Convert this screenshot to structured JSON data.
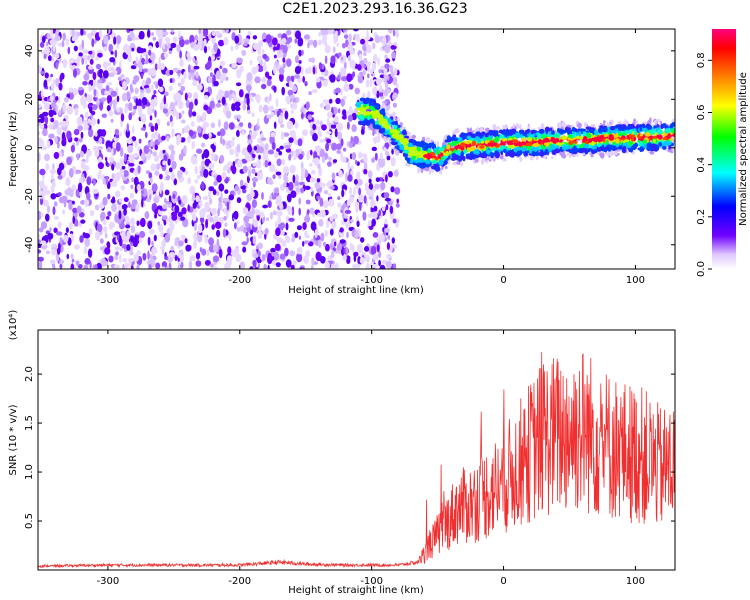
{
  "title": "C2E1.2023.293.16.36.G23",
  "chart_data": [
    {
      "type": "heatmap",
      "xlabel": "Height of straight line (km)",
      "ylabel": "Frequency (Hz)",
      "xlim": [
        -353,
        130
      ],
      "ylim": [
        -50,
        49
      ],
      "xticks": [
        -300,
        -200,
        -100,
        0,
        100
      ],
      "yticks": [
        -40,
        -20,
        0,
        20,
        40
      ],
      "colorbar": {
        "label": "Normalized spectral amplitude",
        "range": [
          0,
          0.92
        ],
        "ticks": [
          0.0,
          0.2,
          0.4,
          0.6,
          0.8
        ],
        "colormap": [
          "#ffffff",
          "#7000ff",
          "#0000ff",
          "#00ffff",
          "#00ff00",
          "#ffff00",
          "#ff8000",
          "#ff0000",
          "#ff0080"
        ]
      },
      "ridge": {
        "x": [
          -110,
          -100,
          -90,
          -80,
          -70,
          -60,
          -50,
          -40,
          -20,
          0,
          20,
          40,
          60,
          80,
          100,
          130
        ],
        "y": [
          15,
          15,
          10,
          5,
          -2,
          -3,
          -4,
          0,
          1,
          2,
          2,
          3,
          3,
          4,
          4,
          5
        ]
      }
    },
    {
      "type": "line",
      "xlabel": "Height of straight line (km)",
      "ylabel": "SNR (10 * v/v)",
      "yscale_label": "(x10⁴)",
      "xlim": [
        -353,
        130
      ],
      "ylim": [
        0,
        2.45
      ],
      "xticks": [
        -300,
        -200,
        -100,
        0,
        100
      ],
      "yticks": [
        0.5,
        1.0,
        1.5,
        2.0
      ],
      "yticklabels": [
        "0.5",
        "1.0",
        "1.5",
        "2.0"
      ],
      "color": "#f03030",
      "envelope": {
        "x": [
          -353,
          -300,
          -250,
          -200,
          -170,
          -150,
          -120,
          -100,
          -80,
          -65,
          -55,
          -45,
          -35,
          -25,
          -10,
          0,
          15,
          30,
          45,
          60,
          75,
          90,
          105,
          120,
          130
        ],
        "y": [
          0.04,
          0.05,
          0.05,
          0.05,
          0.08,
          0.06,
          0.05,
          0.05,
          0.05,
          0.08,
          0.3,
          0.5,
          0.7,
          0.75,
          0.9,
          1.0,
          1.25,
          1.5,
          1.55,
          1.6,
          1.45,
          1.35,
          1.3,
          1.15,
          1.2
        ]
      }
    }
  ]
}
